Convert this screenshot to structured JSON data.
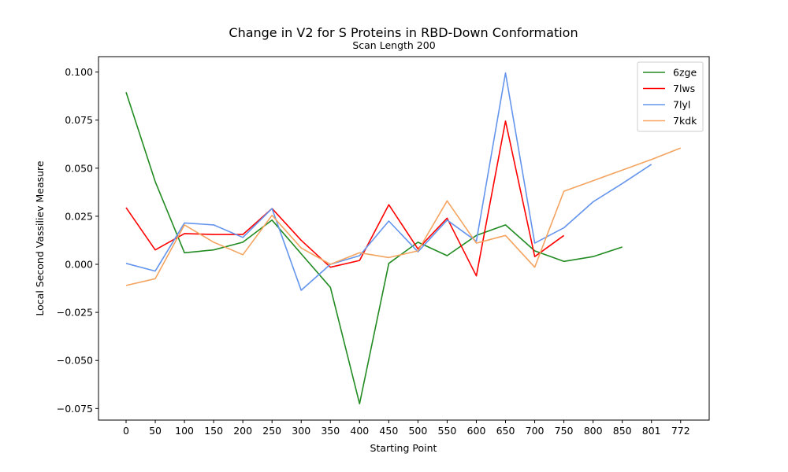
{
  "chart_data": {
    "type": "line",
    "title": "Change in V2 for S Proteins in RBD-Down Conformation",
    "subtitle": "Scan Length 200",
    "xlabel": "Starting Point",
    "ylabel": "Local Second Vassiliev Measure",
    "x_tick_labels": [
      "0",
      "50",
      "100",
      "150",
      "200",
      "250",
      "300",
      "350",
      "400",
      "450",
      "500",
      "550",
      "600",
      "650",
      "700",
      "750",
      "800",
      "850",
      "801",
      "772"
    ],
    "y_ticks": [
      "−0.075",
      "−0.050",
      "−0.025",
      "0.000",
      "0.025",
      "0.050",
      "0.075",
      "0.100"
    ],
    "y_tick_values": [
      -0.075,
      -0.05,
      -0.025,
      0.0,
      0.025,
      0.05,
      0.075,
      0.1
    ],
    "ylim": [
      -0.081,
      0.108
    ],
    "legend_position": "top-right",
    "grid": false,
    "series": [
      {
        "name": "6zge",
        "color": "#228b22",
        "values": [
          0.0895,
          0.043,
          0.006,
          0.0075,
          0.0115,
          0.023,
          0.0055,
          -0.012,
          -0.0725,
          0.0005,
          0.0115,
          0.0045,
          0.015,
          0.0205,
          0.007,
          0.0015,
          0.004,
          0.009
        ]
      },
      {
        "name": "7lws",
        "color": "#ff0000",
        "values": [
          0.0295,
          0.0075,
          0.016,
          0.0155,
          0.0155,
          0.029,
          0.0125,
          -0.0015,
          0.002,
          0.031,
          0.008,
          0.024,
          -0.006,
          0.0745,
          0.004,
          0.015
        ]
      },
      {
        "name": "7lyl",
        "color": "#6495ed",
        "values": [
          0.0005,
          -0.0035,
          0.0215,
          0.0205,
          0.014,
          0.029,
          -0.0135,
          0.0,
          0.0045,
          0.0225,
          0.0065,
          0.023,
          0.012,
          0.0995,
          0.011,
          0.019,
          0.0325,
          0.042,
          0.052
        ]
      },
      {
        "name": "7kdk",
        "color": "#f4a460",
        "values": [
          -0.011,
          -0.0075,
          0.0205,
          0.0115,
          0.005,
          0.0255,
          0.0085,
          0.0,
          0.006,
          0.0035,
          0.007,
          0.033,
          0.011,
          0.015,
          -0.0015,
          0.038,
          0.0435,
          0.049,
          0.0545,
          0.0605
        ]
      }
    ]
  }
}
